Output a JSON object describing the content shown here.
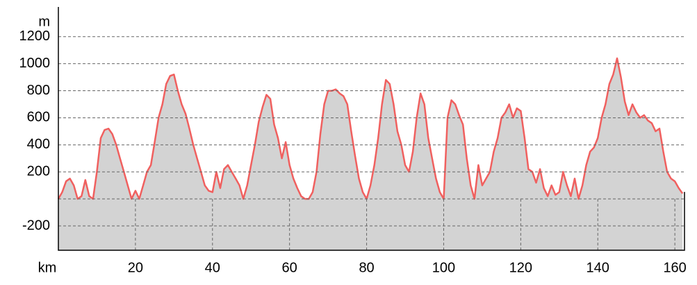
{
  "chart_data": {
    "type": "area",
    "x_unit": "km",
    "y_unit": "m",
    "x": [
      0,
      1,
      2,
      3,
      4,
      5,
      6,
      7,
      8,
      9,
      10,
      11,
      12,
      13,
      14,
      15,
      16,
      17,
      18,
      19,
      20,
      21,
      22,
      23,
      24,
      25,
      26,
      27,
      28,
      29,
      30,
      31,
      32,
      33,
      34,
      35,
      36,
      37,
      38,
      39,
      40,
      41,
      42,
      43,
      44,
      45,
      46,
      47,
      48,
      49,
      50,
      51,
      52,
      53,
      54,
      55,
      56,
      57,
      58,
      59,
      60,
      61,
      62,
      63,
      64,
      65,
      66,
      67,
      68,
      69,
      70,
      71,
      72,
      73,
      74,
      75,
      76,
      77,
      78,
      79,
      80,
      81,
      82,
      83,
      84,
      85,
      86,
      87,
      88,
      89,
      90,
      91,
      92,
      93,
      94,
      95,
      96,
      97,
      98,
      99,
      100,
      101,
      102,
      103,
      104,
      105,
      106,
      107,
      108,
      109,
      110,
      111,
      112,
      113,
      114,
      115,
      116,
      117,
      118,
      119,
      120,
      121,
      122,
      123,
      124,
      125,
      126,
      127,
      128,
      129,
      130,
      131,
      132,
      133,
      134,
      135,
      136,
      137,
      138,
      139,
      140,
      141,
      142,
      143,
      144,
      145,
      146,
      147,
      148,
      149,
      150,
      151,
      152,
      153,
      154,
      155,
      156,
      157,
      158,
      159,
      160,
      161,
      162
    ],
    "series": [
      {
        "color": "#f0605f",
        "fill": "#d3d3d3",
        "values": [
          0,
          50,
          130,
          150,
          100,
          0,
          20,
          140,
          20,
          0,
          200,
          450,
          510,
          520,
          480,
          400,
          300,
          200,
          100,
          0,
          60,
          0,
          100,
          200,
          250,
          420,
          600,
          700,
          850,
          910,
          920,
          800,
          700,
          630,
          520,
          400,
          300,
          200,
          100,
          60,
          50,
          200,
          80,
          220,
          250,
          200,
          150,
          100,
          0,
          100,
          250,
          400,
          570,
          680,
          770,
          740,
          550,
          450,
          300,
          420,
          250,
          150,
          80,
          20,
          0,
          0,
          50,
          200,
          480,
          700,
          800,
          800,
          810,
          780,
          760,
          700,
          500,
          320,
          150,
          50,
          0,
          100,
          250,
          450,
          700,
          880,
          850,
          700,
          500,
          400,
          250,
          200,
          350,
          600,
          780,
          700,
          450,
          300,
          150,
          50,
          0,
          600,
          730,
          700,
          620,
          550,
          300,
          100,
          0,
          250,
          100,
          150,
          200,
          350,
          450,
          600,
          640,
          700,
          600,
          670,
          650,
          450,
          220,
          200,
          120,
          220,
          80,
          20,
          100,
          30,
          50,
          200,
          100,
          20,
          150,
          0,
          100,
          250,
          350,
          380,
          450,
          600,
          700,
          850,
          920,
          1040,
          900,
          720,
          620,
          700,
          640,
          600,
          620,
          580,
          560,
          500,
          520,
          350,
          200,
          150,
          130,
          80,
          40
        ]
      }
    ],
    "xlim": [
      0,
      162.5
    ],
    "ylim": [
      -380,
      1420
    ],
    "xticks": [
      20,
      40,
      60,
      80,
      100,
      120,
      140,
      160
    ],
    "yticks": [
      -200,
      200,
      400,
      600,
      800,
      1000,
      1200
    ],
    "grid": true
  }
}
